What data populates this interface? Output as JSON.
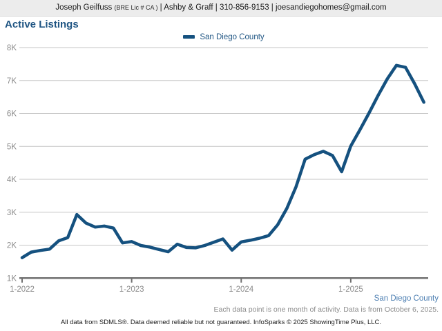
{
  "header": {
    "agent_name": "Joseph Geilfuss",
    "license": "(BRE Lic # CA )",
    "rest": "| Ashby & Graff | 310-856-9153 | joesandiegohomes@gmail.com"
  },
  "title": "Active Listings",
  "legend": {
    "label": "San Diego County"
  },
  "colors": {
    "line": "#15517f",
    "title_text": "#1f5583",
    "legend_text": "#1f5583",
    "region_label_text": "#4d7fb2",
    "grid": "#c6c6c6",
    "axis": "#707070",
    "tick_text": "#8a8a8a",
    "header_bg": "#ececec"
  },
  "chart_data": {
    "type": "line",
    "title": "Active Listings",
    "xlabel": "",
    "ylabel": "",
    "ylim": [
      1000,
      8000
    ],
    "yticks": [
      "1K",
      "2K",
      "3K",
      "4K",
      "5K",
      "6K",
      "7K",
      "8K"
    ],
    "xticks": [
      "1-2022",
      "1-2023",
      "1-2024",
      "1-2025"
    ],
    "grid": true,
    "legend_position": "top-center",
    "x": [
      "1-2022",
      "2-2022",
      "3-2022",
      "4-2022",
      "5-2022",
      "6-2022",
      "7-2022",
      "8-2022",
      "9-2022",
      "10-2022",
      "11-2022",
      "12-2022",
      "1-2023",
      "2-2023",
      "3-2023",
      "4-2023",
      "5-2023",
      "6-2023",
      "7-2023",
      "8-2023",
      "9-2023",
      "10-2023",
      "11-2023",
      "12-2023",
      "1-2024",
      "2-2024",
      "3-2024",
      "4-2024",
      "5-2024",
      "6-2024",
      "7-2024",
      "8-2024",
      "9-2024",
      "10-2024",
      "11-2024",
      "12-2024",
      "1-2025",
      "2-2025",
      "3-2025",
      "4-2025",
      "5-2025",
      "6-2025",
      "7-2025",
      "8-2025",
      "9-2025"
    ],
    "series": [
      {
        "name": "San Diego County",
        "color": "#15517f",
        "values": [
          1620,
          1790,
          1840,
          1880,
          2130,
          2230,
          2930,
          2670,
          2550,
          2580,
          2520,
          2070,
          2110,
          1990,
          1940,
          1870,
          1800,
          2030,
          1930,
          1920,
          1990,
          2090,
          2190,
          1850,
          2100,
          2150,
          2210,
          2290,
          2620,
          3120,
          3770,
          4610,
          4750,
          4850,
          4720,
          4230,
          5010,
          5500,
          6010,
          6550,
          7050,
          7460,
          7400,
          6900,
          6340
        ]
      }
    ]
  },
  "footnotes": {
    "region_label": "San Diego County",
    "data_note": "Each data point is one month of activity. Data is from October 6, 2025.",
    "copyright": "All data from SDMLS®. Data deemed reliable but not guaranteed. InfoSparks © 2025 ShowingTime Plus, LLC."
  }
}
